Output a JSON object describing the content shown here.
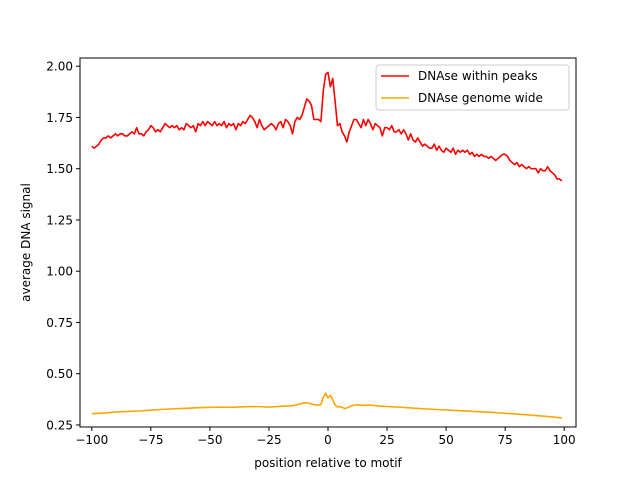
{
  "chart_data": {
    "type": "line",
    "title": "",
    "xlabel": "position relative to motif",
    "ylabel": "average DNA signal",
    "xlim": [
      -105,
      105
    ],
    "ylim": [
      0.24,
      2.04
    ],
    "xticks": [
      -100,
      -75,
      -50,
      -25,
      0,
      25,
      50,
      75,
      100
    ],
    "yticks": [
      0.25,
      0.5,
      0.75,
      1.0,
      1.25,
      1.5,
      1.75,
      2.0
    ],
    "xtick_labels": [
      "−100",
      "−75",
      "−50",
      "−25",
      "0",
      "25",
      "50",
      "75",
      "100"
    ],
    "ytick_labels": [
      "0.25",
      "0.50",
      "0.75",
      "1.00",
      "1.25",
      "1.50",
      "1.75",
      "2.00"
    ],
    "grid": false,
    "legend_position": "top-right",
    "series": [
      {
        "name": "DNAse within peaks",
        "color": "#ff0000",
        "points": [
          [
            -100,
            1.61
          ],
          [
            -99,
            1.6
          ],
          [
            -98,
            1.61
          ],
          [
            -97,
            1.62
          ],
          [
            -96,
            1.64
          ],
          [
            -95,
            1.65
          ],
          [
            -94,
            1.65
          ],
          [
            -93,
            1.66
          ],
          [
            -92,
            1.65
          ],
          [
            -91,
            1.66
          ],
          [
            -90,
            1.67
          ],
          [
            -89,
            1.66
          ],
          [
            -88,
            1.67
          ],
          [
            -87,
            1.67
          ],
          [
            -86,
            1.66
          ],
          [
            -85,
            1.66
          ],
          [
            -84,
            1.67
          ],
          [
            -83,
            1.68
          ],
          [
            -82,
            1.67
          ],
          [
            -81,
            1.7
          ],
          [
            -80,
            1.67
          ],
          [
            -79,
            1.67
          ],
          [
            -78,
            1.66
          ],
          [
            -77,
            1.68
          ],
          [
            -76,
            1.69
          ],
          [
            -75,
            1.71
          ],
          [
            -74,
            1.7
          ],
          [
            -73,
            1.68
          ],
          [
            -72,
            1.69
          ],
          [
            -71,
            1.68
          ],
          [
            -70,
            1.7
          ],
          [
            -69,
            1.72
          ],
          [
            -68,
            1.71
          ],
          [
            -67,
            1.7
          ],
          [
            -66,
            1.71
          ],
          [
            -65,
            1.7
          ],
          [
            -64,
            1.71
          ],
          [
            -63,
            1.69
          ],
          [
            -62,
            1.7
          ],
          [
            -61,
            1.69
          ],
          [
            -60,
            1.72
          ],
          [
            -59,
            1.71
          ],
          [
            -58,
            1.7
          ],
          [
            -57,
            1.71
          ],
          [
            -56,
            1.68
          ],
          [
            -55,
            1.72
          ],
          [
            -54,
            1.71
          ],
          [
            -53,
            1.73
          ],
          [
            -52,
            1.71
          ],
          [
            -51,
            1.73
          ],
          [
            -50,
            1.72
          ],
          [
            -49,
            1.71
          ],
          [
            -48,
            1.73
          ],
          [
            -47,
            1.71
          ],
          [
            -46,
            1.72
          ],
          [
            -45,
            1.71
          ],
          [
            -44,
            1.73
          ],
          [
            -43,
            1.7
          ],
          [
            -42,
            1.72
          ],
          [
            -41,
            1.71
          ],
          [
            -40,
            1.72
          ],
          [
            -39,
            1.69
          ],
          [
            -38,
            1.72
          ],
          [
            -37,
            1.71
          ],
          [
            -36,
            1.73
          ],
          [
            -35,
            1.72
          ],
          [
            -34,
            1.74
          ],
          [
            -33,
            1.76
          ],
          [
            -32,
            1.75
          ],
          [
            -31,
            1.73
          ],
          [
            -30,
            1.7
          ],
          [
            -29,
            1.74
          ],
          [
            -28,
            1.71
          ],
          [
            -27,
            1.69
          ],
          [
            -26,
            1.7
          ],
          [
            -25,
            1.71
          ],
          [
            -24,
            1.72
          ],
          [
            -23,
            1.71
          ],
          [
            -22,
            1.69
          ],
          [
            -21,
            1.72
          ],
          [
            -20,
            1.73
          ],
          [
            -19,
            1.7
          ],
          [
            -18,
            1.74
          ],
          [
            -17,
            1.73
          ],
          [
            -16,
            1.71
          ],
          [
            -15,
            1.67
          ],
          [
            -14,
            1.73
          ],
          [
            -13,
            1.75
          ],
          [
            -12,
            1.74
          ],
          [
            -11,
            1.76
          ],
          [
            -10,
            1.8
          ],
          [
            -9,
            1.84
          ],
          [
            -8,
            1.83
          ],
          [
            -7,
            1.81
          ],
          [
            -6,
            1.74
          ],
          [
            -5,
            1.74
          ],
          [
            -4,
            1.74
          ],
          [
            -3,
            1.73
          ],
          [
            -2,
            1.88
          ],
          [
            -1,
            1.96
          ],
          [
            0,
            1.97
          ],
          [
            1,
            1.9
          ],
          [
            2,
            1.94
          ],
          [
            3,
            1.83
          ],
          [
            4,
            1.71
          ],
          [
            5,
            1.72
          ],
          [
            6,
            1.68
          ],
          [
            7,
            1.66
          ],
          [
            8,
            1.63
          ],
          [
            9,
            1.68
          ],
          [
            10,
            1.71
          ],
          [
            11,
            1.74
          ],
          [
            12,
            1.74
          ],
          [
            13,
            1.72
          ],
          [
            14,
            1.7
          ],
          [
            15,
            1.74
          ],
          [
            16,
            1.71
          ],
          [
            17,
            1.74
          ],
          [
            18,
            1.72
          ],
          [
            19,
            1.69
          ],
          [
            20,
            1.72
          ],
          [
            21,
            1.71
          ],
          [
            22,
            1.7
          ],
          [
            23,
            1.66
          ],
          [
            24,
            1.7
          ],
          [
            25,
            1.7
          ],
          [
            26,
            1.69
          ],
          [
            27,
            1.71
          ],
          [
            28,
            1.68
          ],
          [
            29,
            1.68
          ],
          [
            30,
            1.69
          ],
          [
            31,
            1.67
          ],
          [
            32,
            1.69
          ],
          [
            33,
            1.67
          ],
          [
            34,
            1.64
          ],
          [
            35,
            1.67
          ],
          [
            36,
            1.64
          ],
          [
            37,
            1.63
          ],
          [
            38,
            1.65
          ],
          [
            39,
            1.63
          ],
          [
            40,
            1.61
          ],
          [
            41,
            1.62
          ],
          [
            42,
            1.61
          ],
          [
            43,
            1.6
          ],
          [
            44,
            1.6
          ],
          [
            45,
            1.62
          ],
          [
            46,
            1.59
          ],
          [
            47,
            1.61
          ],
          [
            48,
            1.59
          ],
          [
            49,
            1.58
          ],
          [
            50,
            1.6
          ],
          [
            51,
            1.59
          ],
          [
            52,
            1.58
          ],
          [
            53,
            1.6
          ],
          [
            54,
            1.57
          ],
          [
            55,
            1.59
          ],
          [
            56,
            1.58
          ],
          [
            57,
            1.59
          ],
          [
            58,
            1.58
          ],
          [
            59,
            1.59
          ],
          [
            60,
            1.57
          ],
          [
            61,
            1.58
          ],
          [
            62,
            1.56
          ],
          [
            63,
            1.57
          ],
          [
            64,
            1.56
          ],
          [
            65,
            1.57
          ],
          [
            66,
            1.56
          ],
          [
            67,
            1.56
          ],
          [
            68,
            1.55
          ],
          [
            69,
            1.56
          ],
          [
            70,
            1.55
          ],
          [
            71,
            1.54
          ],
          [
            72,
            1.55
          ],
          [
            73,
            1.56
          ],
          [
            74,
            1.57
          ],
          [
            75,
            1.57
          ],
          [
            76,
            1.56
          ],
          [
            77,
            1.54
          ],
          [
            78,
            1.53
          ],
          [
            79,
            1.52
          ],
          [
            80,
            1.53
          ],
          [
            81,
            1.51
          ],
          [
            82,
            1.52
          ],
          [
            83,
            1.51
          ],
          [
            84,
            1.5
          ],
          [
            85,
            1.51
          ],
          [
            86,
            1.5
          ],
          [
            87,
            1.5
          ],
          [
            88,
            1.5
          ],
          [
            89,
            1.48
          ],
          [
            90,
            1.5
          ],
          [
            91,
            1.49
          ],
          [
            92,
            1.49
          ],
          [
            93,
            1.51
          ],
          [
            94,
            1.49
          ],
          [
            95,
            1.48
          ],
          [
            96,
            1.47
          ],
          [
            97,
            1.45
          ],
          [
            98,
            1.45
          ],
          [
            99,
            1.44
          ]
        ]
      },
      {
        "name": "DNAse genome wide",
        "color": "#ffa500",
        "points": [
          [
            -100,
            0.305
          ],
          [
            -95,
            0.308
          ],
          [
            -90,
            0.313
          ],
          [
            -85,
            0.316
          ],
          [
            -80,
            0.318
          ],
          [
            -75,
            0.322
          ],
          [
            -70,
            0.326
          ],
          [
            -65,
            0.329
          ],
          [
            -60,
            0.331
          ],
          [
            -55,
            0.334
          ],
          [
            -50,
            0.336
          ],
          [
            -45,
            0.337
          ],
          [
            -40,
            0.336
          ],
          [
            -35,
            0.339
          ],
          [
            -30,
            0.34
          ],
          [
            -25,
            0.337
          ],
          [
            -20,
            0.341
          ],
          [
            -15,
            0.344
          ],
          [
            -12,
            0.352
          ],
          [
            -10,
            0.358
          ],
          [
            -8,
            0.356
          ],
          [
            -6,
            0.349
          ],
          [
            -4,
            0.347
          ],
          [
            -3,
            0.349
          ],
          [
            -2,
            0.385
          ],
          [
            -1,
            0.405
          ],
          [
            0,
            0.382
          ],
          [
            1,
            0.395
          ],
          [
            2,
            0.372
          ],
          [
            3,
            0.346
          ],
          [
            4,
            0.338
          ],
          [
            5,
            0.34
          ],
          [
            6,
            0.336
          ],
          [
            7,
            0.33
          ],
          [
            8,
            0.333
          ],
          [
            10,
            0.343
          ],
          [
            12,
            0.349
          ],
          [
            15,
            0.345
          ],
          [
            18,
            0.347
          ],
          [
            20,
            0.344
          ],
          [
            25,
            0.34
          ],
          [
            30,
            0.337
          ],
          [
            35,
            0.333
          ],
          [
            40,
            0.329
          ],
          [
            45,
            0.326
          ],
          [
            50,
            0.323
          ],
          [
            55,
            0.32
          ],
          [
            60,
            0.317
          ],
          [
            65,
            0.314
          ],
          [
            70,
            0.311
          ],
          [
            75,
            0.307
          ],
          [
            80,
            0.303
          ],
          [
            85,
            0.299
          ],
          [
            90,
            0.294
          ],
          [
            95,
            0.289
          ],
          [
            99,
            0.284
          ]
        ]
      }
    ]
  }
}
